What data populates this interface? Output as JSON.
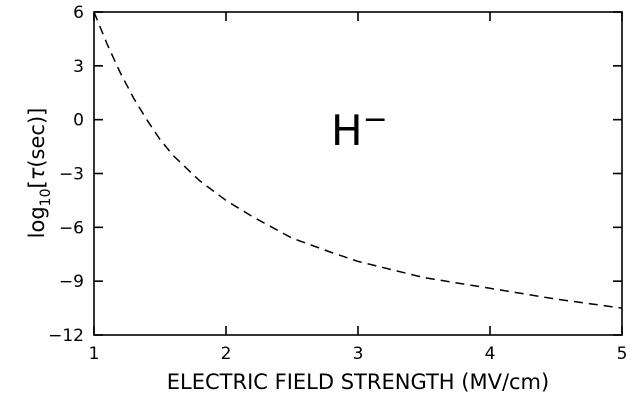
{
  "chart_data": {
    "type": "line",
    "title": "",
    "xlabel": "ELECTRIC FIELD STRENGTH (MV/cm)",
    "ylabel": {
      "prefix": "log",
      "subscript": "10",
      "open_bracket": "[",
      "symbol": "τ",
      "unit": "(sec)",
      "close_bracket": "]"
    },
    "annotation": {
      "base": "H",
      "superscript": "−"
    },
    "xlim": [
      1,
      5
    ],
    "ylim": [
      -12,
      6
    ],
    "xticks": [
      1,
      2,
      3,
      4,
      5
    ],
    "yticks": [
      6,
      3,
      0,
      -3,
      -6,
      -9,
      -12
    ],
    "xtick_labels": [
      "1",
      "2",
      "3",
      "4",
      "5"
    ],
    "ytick_labels": [
      "6",
      "3",
      "0",
      "−3",
      "−6",
      "−9",
      "−12"
    ],
    "grid": false,
    "line_style": "dashed",
    "series": [
      {
        "x": [
          1.0,
          1.1,
          1.2,
          1.3,
          1.4,
          1.5,
          1.6,
          1.8,
          2.0,
          2.2,
          2.5,
          2.8,
          3.0,
          3.5,
          4.0,
          4.5,
          5.0
        ],
        "y": [
          6.0,
          4.2,
          2.6,
          1.2,
          0.0,
          -1.1,
          -2.0,
          -3.4,
          -4.5,
          -5.4,
          -6.6,
          -7.4,
          -7.9,
          -8.8,
          -9.4,
          -10.0,
          -10.5
        ]
      }
    ]
  }
}
